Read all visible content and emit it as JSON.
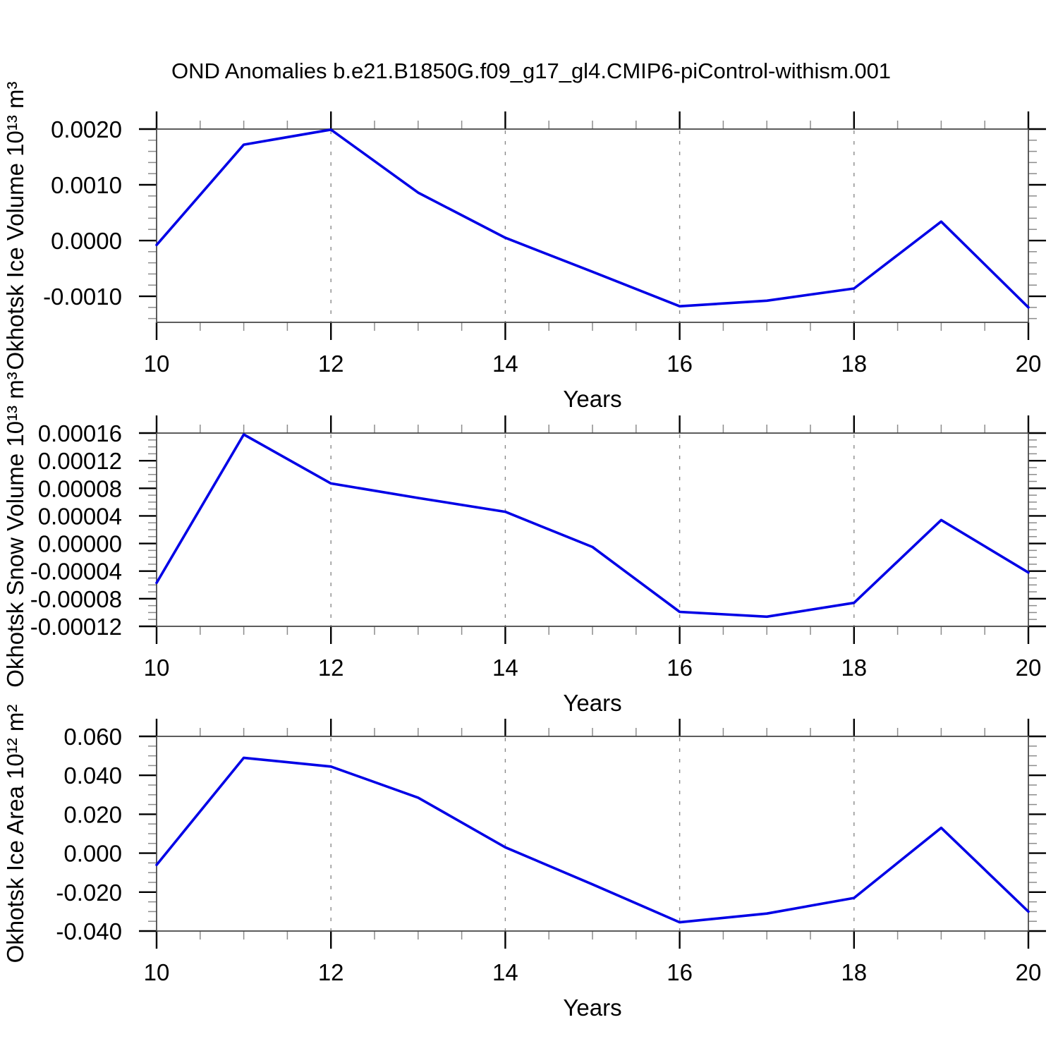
{
  "page_title": "OND Anomalies b.e21.B1850G.f09_g17_gl4.CMIP6-piControl-withism.001",
  "style": {
    "line_color": "#0000e6",
    "frame_color": "#4a4a4a",
    "major_tick_color": "#000000",
    "minor_tick_color": "#8c8c8c",
    "grid_color": "#8a8a8a",
    "text_color": "#000000",
    "background": "#ffffff"
  },
  "chart_data": [
    {
      "type": "line",
      "ylabel": "Okhotsk Ice Volume 10¹³ m³",
      "xlabel": "Years",
      "x": [
        10,
        11,
        12,
        13,
        14,
        15,
        16,
        17,
        18,
        19,
        20
      ],
      "values": [
        -8e-05,
        0.00172,
        0.00199,
        0.00086,
        5e-05,
        -0.00056,
        -0.00118,
        -0.00108,
        -0.00086,
        0.00034,
        -0.0012
      ],
      "xlim": [
        10,
        20
      ],
      "ylim": [
        -0.001468,
        0.002
      ],
      "x_major_ticks": [
        10,
        12,
        14,
        16,
        18,
        20
      ],
      "x_tick_labels": [
        "10",
        "12",
        "14",
        "16",
        "18",
        "20"
      ],
      "x_minor_step": 0.5,
      "y_major_ticks": [
        0.002,
        0.001,
        0.0,
        -0.001
      ],
      "y_tick_labels": [
        "0.0020",
        "0.0010",
        "0.0000",
        "-0.0010"
      ],
      "y_minor_step": 0.0002,
      "grid_x": [
        12,
        14,
        16,
        18
      ],
      "legend": "none"
    },
    {
      "type": "line",
      "ylabel": "Okhotsk Snow Volume 10¹³ m³",
      "xlabel": "Years",
      "x": [
        10,
        11,
        12,
        13,
        14,
        15,
        16,
        17,
        18,
        19,
        20
      ],
      "values": [
        -5.7e-05,
        0.000158,
        8.7e-05,
        6.6e-05,
        4.6e-05,
        -5e-06,
        -9.9e-05,
        -0.000106,
        -8.6e-05,
        3.4e-05,
        -4.2e-05
      ],
      "xlim": [
        10,
        20
      ],
      "ylim": [
        -0.00012,
        0.00016
      ],
      "x_major_ticks": [
        10,
        12,
        14,
        16,
        18,
        20
      ],
      "x_tick_labels": [
        "10",
        "12",
        "14",
        "16",
        "18",
        "20"
      ],
      "x_minor_step": 0.5,
      "y_major_ticks": [
        0.00016,
        0.00012,
        8e-05,
        4e-05,
        0.0,
        -4e-05,
        -8e-05,
        -0.00012
      ],
      "y_tick_labels": [
        "0.00016",
        "0.00012",
        "0.00008",
        "0.00004",
        "0.00000",
        "-0.00004",
        "-0.00008",
        "-0.00012"
      ],
      "y_minor_step": 1e-05,
      "grid_x": [
        12,
        14,
        16,
        18
      ],
      "legend": "none"
    },
    {
      "type": "line",
      "ylabel": "Okhotsk Ice Area 10¹² m²",
      "xlabel": "Years",
      "x": [
        10,
        11,
        12,
        13,
        14,
        15,
        16,
        17,
        18,
        19,
        20
      ],
      "values": [
        -0.006,
        0.049,
        0.0445,
        0.0285,
        0.003,
        -0.016,
        -0.0355,
        -0.031,
        -0.023,
        0.013,
        -0.03
      ],
      "xlim": [
        10,
        20
      ],
      "ylim": [
        -0.04,
        0.06
      ],
      "x_major_ticks": [
        10,
        12,
        14,
        16,
        18,
        20
      ],
      "x_tick_labels": [
        "10",
        "12",
        "14",
        "16",
        "18",
        "20"
      ],
      "x_minor_step": 0.5,
      "y_major_ticks": [
        0.06,
        0.04,
        0.02,
        0.0,
        -0.02,
        -0.04
      ],
      "y_tick_labels": [
        "0.060",
        "0.040",
        "0.020",
        "0.000",
        "-0.020",
        "-0.040"
      ],
      "y_minor_step": 0.005,
      "grid_x": [
        12,
        14,
        16,
        18
      ],
      "legend": "none"
    }
  ]
}
